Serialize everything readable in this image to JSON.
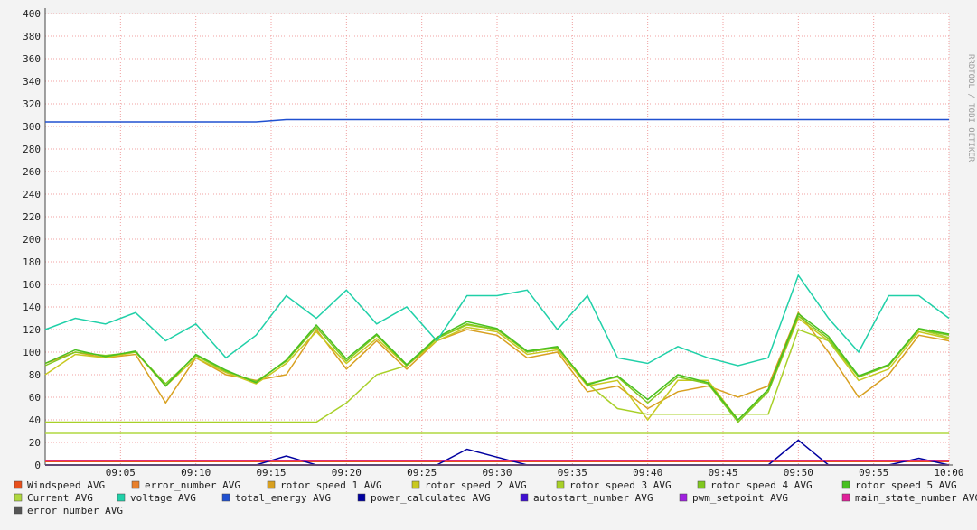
{
  "chart_data": {
    "type": "line",
    "watermark": "RRDTOOL / TOBI OETIKER",
    "x": [
      "09:00",
      "09:02",
      "09:04",
      "09:06",
      "09:08",
      "09:10",
      "09:12",
      "09:14",
      "09:16",
      "09:18",
      "09:20",
      "09:22",
      "09:24",
      "09:26",
      "09:28",
      "09:30",
      "09:32",
      "09:34",
      "09:36",
      "09:38",
      "09:40",
      "09:42",
      "09:44",
      "09:46",
      "09:48",
      "09:50",
      "09:52",
      "09:54",
      "09:56",
      "09:58",
      "10:00"
    ],
    "xlim": [
      "09:00",
      "10:00"
    ],
    "xticks": [
      "09:05",
      "09:10",
      "09:15",
      "09:20",
      "09:25",
      "09:30",
      "09:35",
      "09:40",
      "09:45",
      "09:50",
      "09:55",
      "10:00"
    ],
    "ylim": [
      0,
      400
    ],
    "yticks": [
      0,
      20,
      40,
      60,
      80,
      100,
      120,
      140,
      160,
      180,
      200,
      220,
      240,
      260,
      280,
      300,
      320,
      340,
      360,
      380,
      400
    ],
    "grid": true,
    "legend": "bottom",
    "series": [
      {
        "name": "Windspeed AVG",
        "color": "#e8501c",
        "values": [
          3,
          3,
          3,
          3,
          3,
          3,
          3,
          3,
          3,
          3,
          3,
          3,
          3,
          3,
          3,
          3,
          3,
          3,
          3,
          3,
          3,
          3,
          3,
          3,
          3,
          3,
          3,
          3,
          3,
          3,
          3
        ]
      },
      {
        "name": "error_number AVG",
        "color": "#e8802c",
        "values": [
          0,
          0,
          0,
          0,
          0,
          0,
          0,
          0,
          0,
          0,
          0,
          0,
          0,
          0,
          0,
          0,
          0,
          0,
          0,
          0,
          0,
          0,
          0,
          0,
          0,
          0,
          0,
          0,
          0,
          0,
          0
        ]
      },
      {
        "name": "rotor speed 1 AVG",
        "color": "#d8a020",
        "values": [
          90,
          100,
          95,
          98,
          55,
          95,
          80,
          75,
          80,
          120,
          85,
          110,
          85,
          110,
          120,
          115,
          95,
          100,
          65,
          70,
          50,
          65,
          70,
          60,
          70,
          135,
          100,
          60,
          80,
          115,
          110
        ]
      },
      {
        "name": "rotor speed 2 AVG",
        "color": "#c8c820",
        "values": [
          80,
          98,
          95,
          100,
          70,
          95,
          82,
          72,
          90,
          118,
          90,
          112,
          88,
          110,
          122,
          118,
          98,
          102,
          70,
          75,
          40,
          75,
          75,
          40,
          65,
          130,
          110,
          75,
          85,
          118,
          112
        ]
      },
      {
        "name": "rotor speed 3 AVG",
        "color": "#a8d028",
        "values": [
          38,
          38,
          38,
          38,
          38,
          38,
          38,
          38,
          38,
          38,
          55,
          80,
          88,
          112,
          124,
          120,
          100,
          104,
          72,
          50,
          45,
          45,
          45,
          45,
          45,
          120,
          110,
          78,
          88,
          120,
          113
        ]
      },
      {
        "name": "rotor speed 4 AVG",
        "color": "#80c820",
        "values": [
          88,
          100,
          97,
          100,
          72,
          97,
          83,
          74,
          92,
          122,
          92,
          115,
          88,
          112,
          125,
          120,
          100,
          104,
          72,
          78,
          55,
          78,
          72,
          38,
          65,
          132,
          112,
          78,
          88,
          120,
          115
        ]
      },
      {
        "name": "rotor speed 5 AVG",
        "color": "#48c020",
        "values": [
          90,
          102,
          96,
          101,
          70,
          98,
          84,
          73,
          93,
          124,
          94,
          116,
          89,
          113,
          127,
          121,
          101,
          105,
          71,
          79,
          58,
          80,
          73,
          40,
          67,
          134,
          114,
          79,
          89,
          121,
          116
        ]
      },
      {
        "name": "Current AVG",
        "color": "#b0d840",
        "values": [
          28,
          28,
          28,
          28,
          28,
          28,
          28,
          28,
          28,
          28,
          28,
          28,
          28,
          28,
          28,
          28,
          28,
          28,
          28,
          28,
          28,
          28,
          28,
          28,
          28,
          28,
          28,
          28,
          28,
          28,
          28
        ]
      },
      {
        "name": "voltage AVG",
        "color": "#20d0a8",
        "values": [
          120,
          130,
          125,
          135,
          110,
          125,
          95,
          115,
          150,
          130,
          155,
          125,
          140,
          110,
          150,
          150,
          155,
          120,
          150,
          95,
          90,
          105,
          95,
          88,
          95,
          168,
          130,
          100,
          150,
          150,
          130
        ]
      },
      {
        "name": "total_energy AVG",
        "color": "#2050d0",
        "values": [
          304,
          304,
          304,
          304,
          304,
          304,
          304,
          304,
          306,
          306,
          306,
          306,
          306,
          306,
          306,
          306,
          306,
          306,
          306,
          306,
          306,
          306,
          306,
          306,
          306,
          306,
          306,
          306,
          306,
          306,
          306
        ]
      },
      {
        "name": "power_calculated AVG",
        "color": "#0000a0",
        "values": [
          0,
          0,
          0,
          0,
          0,
          0,
          0,
          0,
          8,
          0,
          0,
          0,
          0,
          0,
          14,
          7,
          0,
          0,
          0,
          0,
          0,
          0,
          0,
          0,
          0,
          22,
          0,
          0,
          0,
          6,
          0
        ]
      },
      {
        "name": "autostart_number AVG",
        "color": "#4010d0",
        "values": [
          0,
          0,
          0,
          0,
          0,
          0,
          0,
          0,
          0,
          0,
          0,
          0,
          0,
          0,
          0,
          0,
          0,
          0,
          0,
          0,
          0,
          0,
          0,
          0,
          0,
          0,
          0,
          0,
          0,
          0,
          0
        ]
      },
      {
        "name": "pwm_setpoint AVG",
        "color": "#a020e0",
        "values": [
          0,
          0,
          0,
          0,
          0,
          0,
          0,
          0,
          0,
          0,
          0,
          0,
          0,
          0,
          0,
          0,
          0,
          0,
          0,
          0,
          0,
          0,
          0,
          0,
          0,
          0,
          0,
          0,
          0,
          0,
          0
        ]
      },
      {
        "name": "main_state_number AVG",
        "color": "#e0209a",
        "values": [
          4,
          4,
          4,
          4,
          4,
          4,
          4,
          4,
          4,
          4,
          4,
          4,
          4,
          4,
          4,
          4,
          4,
          4,
          4,
          4,
          4,
          4,
          4,
          4,
          4,
          4,
          4,
          4,
          4,
          4,
          4
        ]
      },
      {
        "name": "error_number AVG",
        "color": "#555555",
        "values": [
          0,
          0,
          0,
          0,
          0,
          0,
          0,
          0,
          0,
          0,
          0,
          0,
          0,
          0,
          0,
          0,
          0,
          0,
          0,
          0,
          0,
          0,
          0,
          0,
          0,
          0,
          0,
          0,
          0,
          0,
          0
        ]
      }
    ]
  }
}
